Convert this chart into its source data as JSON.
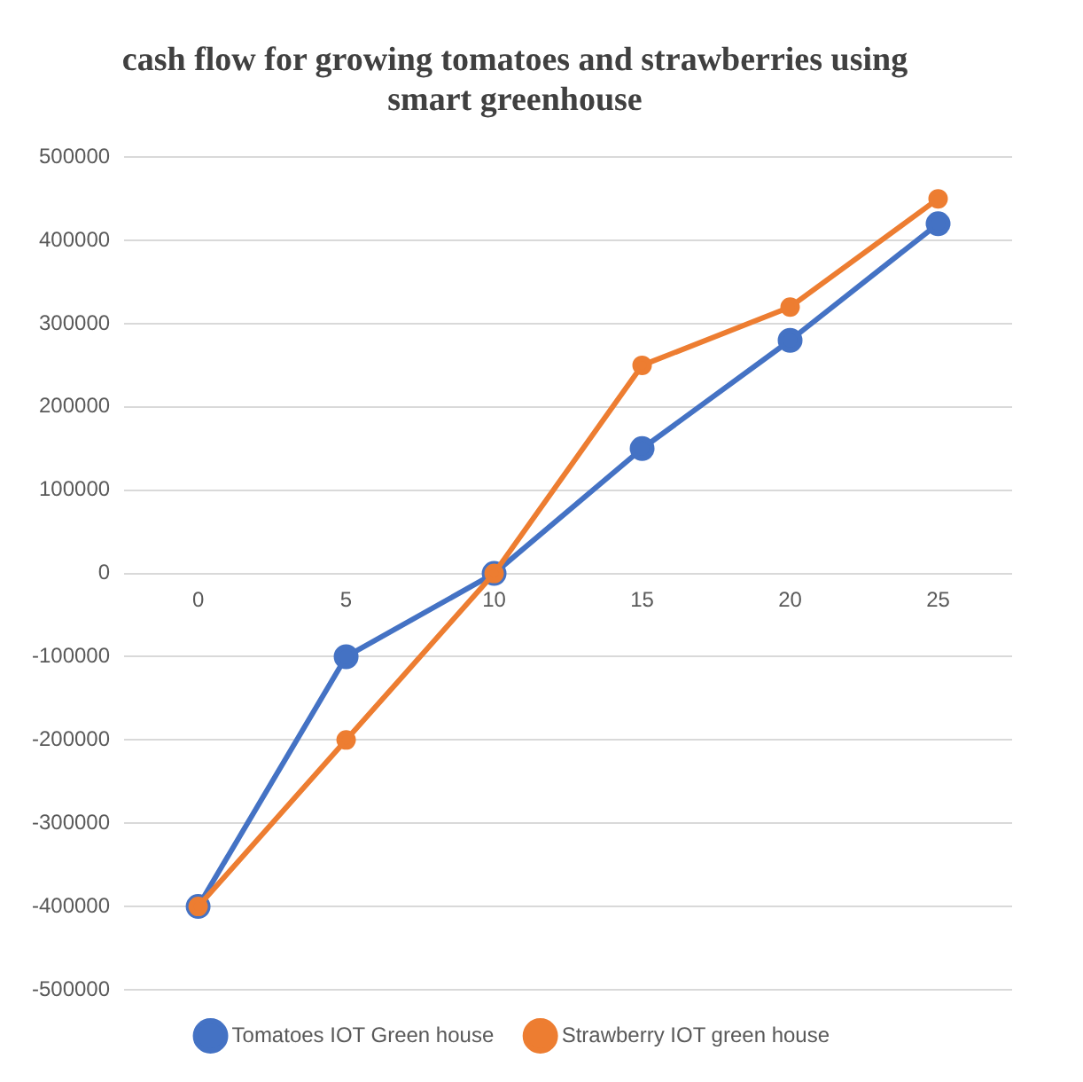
{
  "chart_data": {
    "type": "line",
    "title": "cash flow for growing tomatoes and strawberries using smart greenhouse",
    "categories": [
      "0",
      "5",
      "10",
      "15",
      "20",
      "25"
    ],
    "series": [
      {
        "name": "Tomatoes IOT Green house",
        "color": "#4472c4",
        "values": [
          -400000,
          -100000,
          0,
          150000,
          280000,
          420000
        ]
      },
      {
        "name": "Strawberry IOT green house",
        "color": "#ed7d31",
        "values": [
          -400000,
          -200000,
          0,
          250000,
          320000,
          450000
        ]
      }
    ],
    "ylim": [
      -500000,
      500000
    ],
    "yticks": [
      -500000,
      -400000,
      -300000,
      -200000,
      -100000,
      0,
      100000,
      200000,
      300000,
      400000,
      500000
    ],
    "grid": "y",
    "legend": "bottom",
    "marker": "circle",
    "line_style": "solid"
  }
}
